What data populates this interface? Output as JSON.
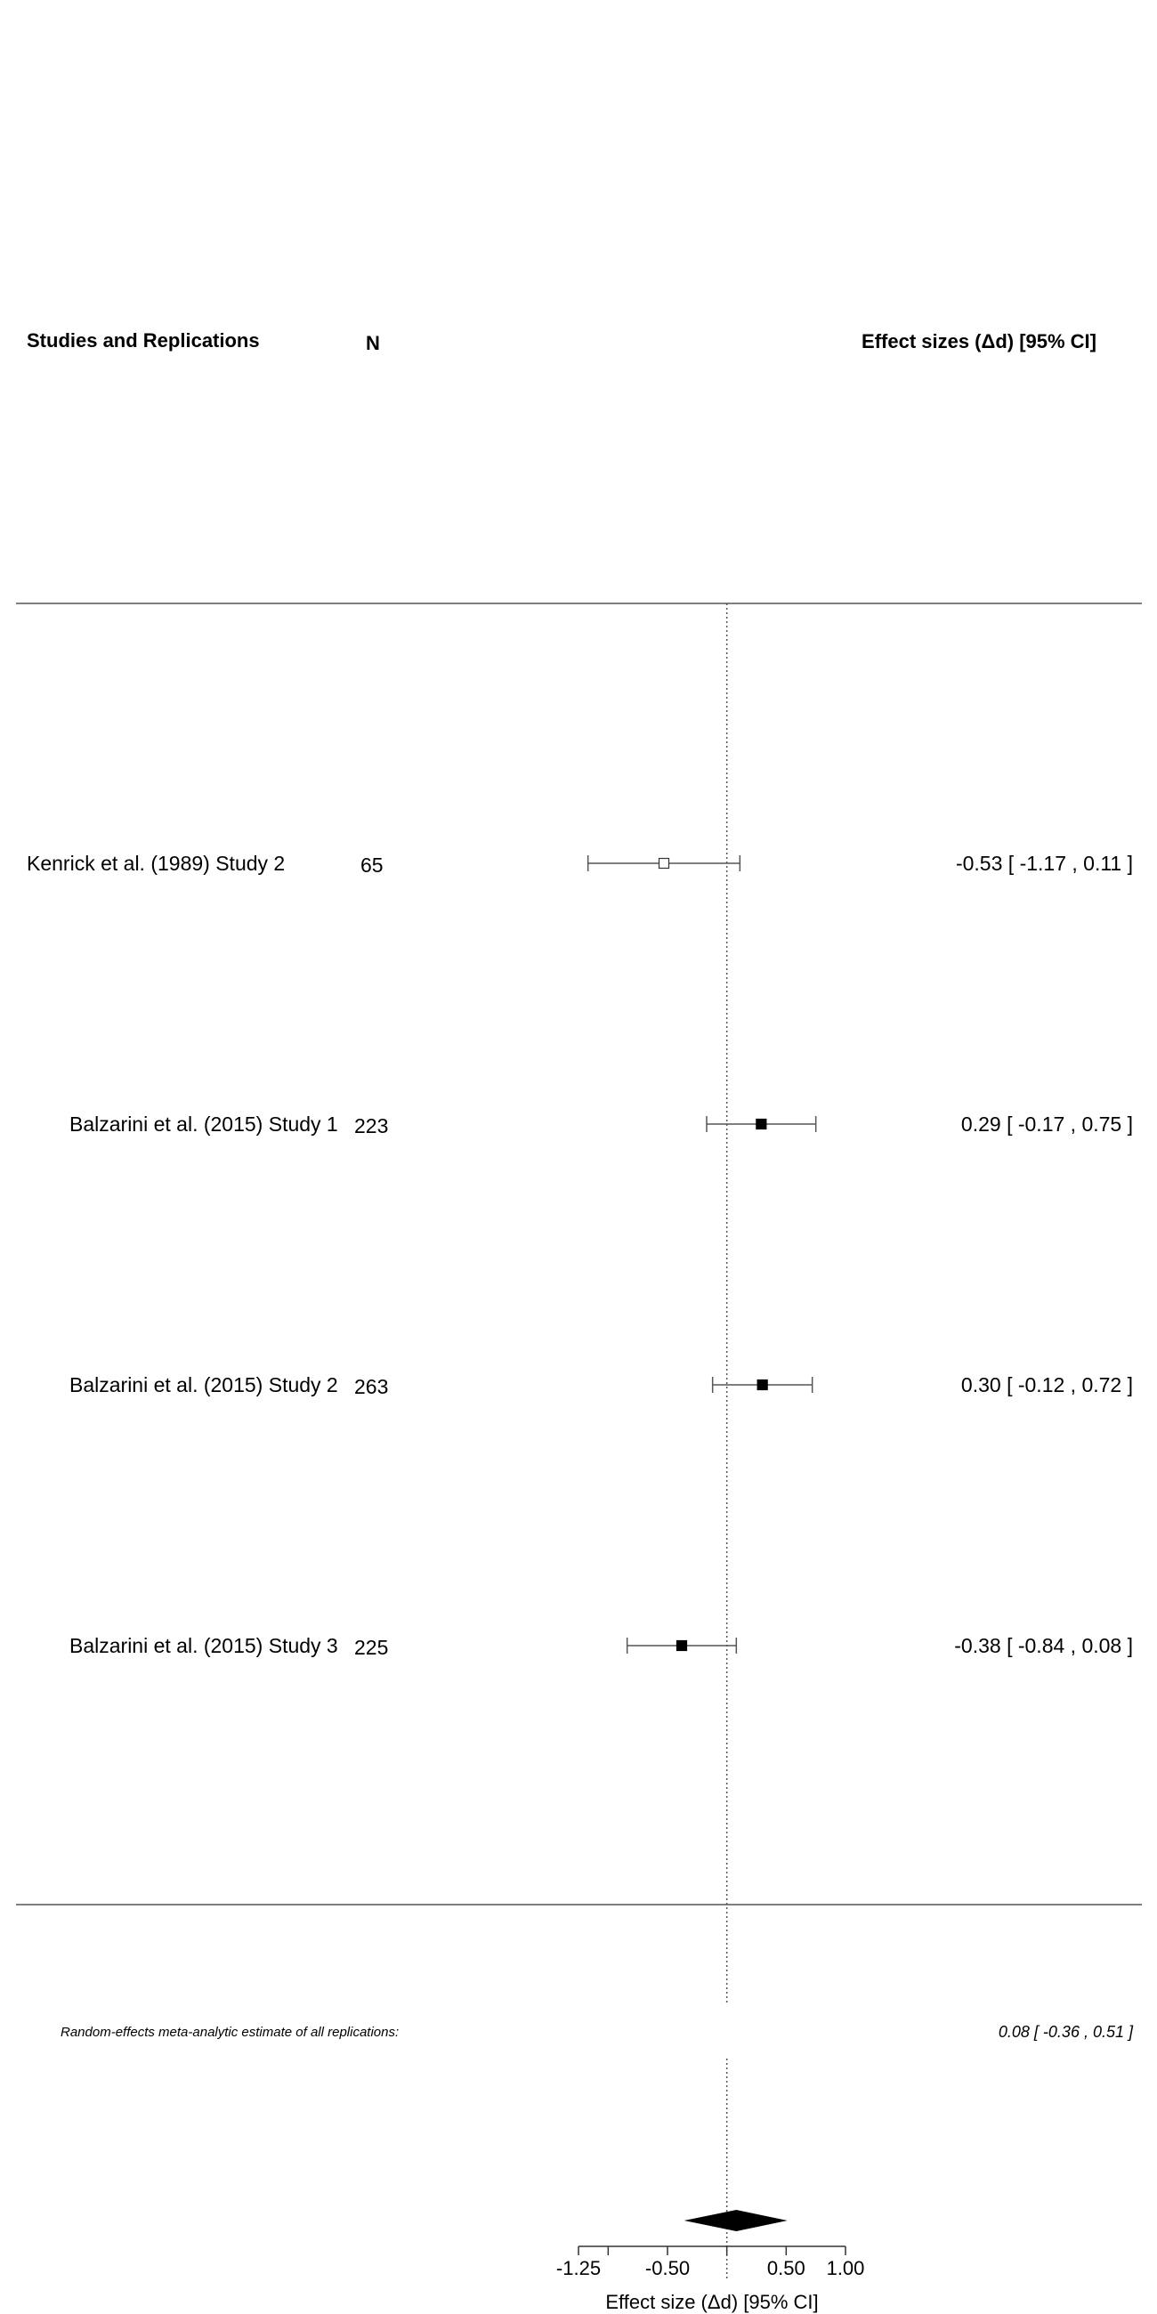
{
  "chart_data": {
    "type": "forest",
    "headers": {
      "studies": "Studies and Replications",
      "n": "N",
      "effect": "Effect sizes (Δd) [95% CI]"
    },
    "xlabel": "Effect size (Δd) [95% CI]",
    "x_ticks": [
      -1.25,
      -1.0,
      -0.5,
      0.0,
      0.5,
      1.0
    ],
    "x_tick_labels": [
      "-1.25",
      "",
      "-0.50",
      "",
      "0.50",
      "1.00"
    ],
    "xlim": [
      -1.25,
      1.0
    ],
    "reference_line": 0,
    "studies": [
      {
        "label": "Kenrick et al. (1989) Study 2",
        "n": "65",
        "estimate": -0.53,
        "lower": -1.17,
        "upper": 0.11,
        "ci_text": "-0.53 [ -1.17 , 0.11 ]",
        "marker": "open-square",
        "indent": false
      },
      {
        "label": "Balzarini et al. (2015) Study 1",
        "n": "223",
        "estimate": 0.29,
        "lower": -0.17,
        "upper": 0.75,
        "ci_text": "0.29 [ -0.17 , 0.75 ]",
        "marker": "filled-square",
        "indent": true
      },
      {
        "label": "Balzarini et al. (2015) Study 2",
        "n": "263",
        "estimate": 0.3,
        "lower": -0.12,
        "upper": 0.72,
        "ci_text": "0.30 [ -0.12 , 0.72 ]",
        "marker": "filled-square",
        "indent": true
      },
      {
        "label": "Balzarini et al. (2015) Study 3",
        "n": "225",
        "estimate": -0.38,
        "lower": -0.84,
        "upper": 0.08,
        "ci_text": "-0.38 [ -0.84 , 0.08 ]",
        "marker": "filled-square",
        "indent": true
      }
    ],
    "summary": {
      "label": "Random-effects meta-analytic estimate of all replications:",
      "estimate": 0.08,
      "lower": -0.36,
      "upper": 0.51,
      "ci_text": "0.08 [ -0.36 , 0.51 ]"
    }
  }
}
